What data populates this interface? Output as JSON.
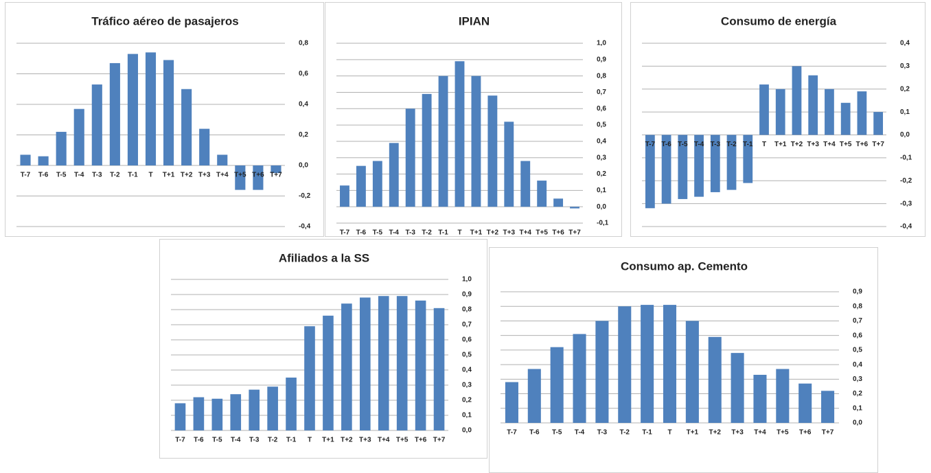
{
  "chart_data": [
    {
      "type": "bar",
      "title": "Tráfico aéreo de pasajeros",
      "color": "#4f81bd",
      "grid": true,
      "categories": [
        "T-7",
        "T-6",
        "T-5",
        "T-4",
        "T-3",
        "T-2",
        "T-1",
        "T",
        "T+1",
        "T+2",
        "T+3",
        "T+4",
        "T+5",
        "T+6",
        "T+7"
      ],
      "values": [
        0.07,
        0.06,
        0.22,
        0.37,
        0.53,
        0.67,
        0.73,
        0.74,
        0.69,
        0.5,
        0.24,
        0.07,
        -0.16,
        -0.16,
        -0.05
      ],
      "ylim": [
        -0.4,
        0.8
      ],
      "yticks": [
        {
          "value": -0.4,
          "label": "-0,4"
        },
        {
          "value": -0.2,
          "label": "-0,2"
        },
        {
          "value": 0,
          "label": "0,0"
        },
        {
          "value": 0.2,
          "label": "0,2"
        },
        {
          "value": 0.4,
          "label": "0,4"
        },
        {
          "value": 0.6,
          "label": "0,6"
        },
        {
          "value": 0.8,
          "label": "0,8"
        }
      ]
    },
    {
      "type": "bar",
      "title": "IPIAN",
      "color": "#4f81bd",
      "grid": true,
      "categories": [
        "T-7",
        "T-6",
        "T-5",
        "T-4",
        "T-3",
        "T-2",
        "T-1",
        "T",
        "T+1",
        "T+2",
        "T+3",
        "T+4",
        "T+5",
        "T+6",
        "T+7"
      ],
      "values": [
        0.13,
        0.25,
        0.28,
        0.39,
        0.6,
        0.69,
        0.8,
        0.89,
        0.8,
        0.68,
        0.52,
        0.28,
        0.16,
        0.05,
        -0.01
      ],
      "ylim": [
        -0.1,
        1.0
      ],
      "yticks": [
        {
          "value": -0.1,
          "label": "-0,1"
        },
        {
          "value": 0,
          "label": "0,0"
        },
        {
          "value": 0.1,
          "label": "0,1"
        },
        {
          "value": 0.2,
          "label": "0,2"
        },
        {
          "value": 0.3,
          "label": "0,3"
        },
        {
          "value": 0.4,
          "label": "0,4"
        },
        {
          "value": 0.5,
          "label": "0,5"
        },
        {
          "value": 0.6,
          "label": "0,6"
        },
        {
          "value": 0.7,
          "label": "0,7"
        },
        {
          "value": 0.8,
          "label": "0,8"
        },
        {
          "value": 0.9,
          "label": "0,9"
        },
        {
          "value": 1.0,
          "label": "1,0"
        }
      ]
    },
    {
      "type": "bar",
      "title": "Consumo de energía",
      "color": "#4f81bd",
      "grid": true,
      "categories": [
        "T-7",
        "T-6",
        "T-5",
        "T-4",
        "T-3",
        "T-2",
        "T-1",
        "T",
        "T+1",
        "T+2",
        "T+3",
        "T+4",
        "T+5",
        "T+6",
        "T+7"
      ],
      "values": [
        -0.32,
        -0.3,
        -0.28,
        -0.27,
        -0.25,
        -0.24,
        -0.21,
        0.22,
        0.2,
        0.3,
        0.26,
        0.2,
        0.14,
        0.19,
        0.1
      ],
      "ylim": [
        -0.4,
        0.4
      ],
      "yticks": [
        {
          "value": -0.4,
          "label": "-0,4"
        },
        {
          "value": -0.3,
          "label": "-0,3"
        },
        {
          "value": -0.2,
          "label": "-0,2"
        },
        {
          "value": -0.1,
          "label": "-0,1"
        },
        {
          "value": 0,
          "label": "0,0"
        },
        {
          "value": 0.1,
          "label": "0,1"
        },
        {
          "value": 0.2,
          "label": "0,2"
        },
        {
          "value": 0.3,
          "label": "0,3"
        },
        {
          "value": 0.4,
          "label": "0,4"
        }
      ]
    },
    {
      "type": "bar",
      "title": "Afiliados a la SS",
      "color": "#4f81bd",
      "grid": true,
      "categories": [
        "T-7",
        "T-6",
        "T-5",
        "T-4",
        "T-3",
        "T-2",
        "T-1",
        "T",
        "T+1",
        "T+2",
        "T+3",
        "T+4",
        "T+5",
        "T+6",
        "T+7"
      ],
      "values": [
        0.18,
        0.22,
        0.21,
        0.24,
        0.27,
        0.29,
        0.35,
        0.69,
        0.76,
        0.84,
        0.88,
        0.89,
        0.89,
        0.86,
        0.81
      ],
      "ylim": [
        0,
        1.0
      ],
      "yticks": [
        {
          "value": 0,
          "label": "0,0"
        },
        {
          "value": 0.1,
          "label": "0,1"
        },
        {
          "value": 0.2,
          "label": "0,2"
        },
        {
          "value": 0.3,
          "label": "0,3"
        },
        {
          "value": 0.4,
          "label": "0,4"
        },
        {
          "value": 0.5,
          "label": "0,5"
        },
        {
          "value": 0.6,
          "label": "0,6"
        },
        {
          "value": 0.7,
          "label": "0,7"
        },
        {
          "value": 0.8,
          "label": "0,8"
        },
        {
          "value": 0.9,
          "label": "0,9"
        },
        {
          "value": 1.0,
          "label": "1,0"
        }
      ]
    },
    {
      "type": "bar",
      "title": "Consumo ap. Cemento",
      "color": "#4f81bd",
      "grid": true,
      "categories": [
        "T-7",
        "T-6",
        "T-5",
        "T-4",
        "T-3",
        "T-2",
        "T-1",
        "T",
        "T+1",
        "T+2",
        "T+3",
        "T+4",
        "T+5",
        "T+6",
        "T+7"
      ],
      "values": [
        0.28,
        0.37,
        0.52,
        0.61,
        0.7,
        0.8,
        0.81,
        0.81,
        0.7,
        0.59,
        0.48,
        0.33,
        0.37,
        0.27,
        0.22
      ],
      "ylim": [
        0,
        0.9
      ],
      "yticks": [
        {
          "value": 0,
          "label": "0,0"
        },
        {
          "value": 0.1,
          "label": "0,1"
        },
        {
          "value": 0.2,
          "label": "0,2"
        },
        {
          "value": 0.3,
          "label": "0,3"
        },
        {
          "value": 0.4,
          "label": "0,4"
        },
        {
          "value": 0.5,
          "label": "0,5"
        },
        {
          "value": 0.6,
          "label": "0,6"
        },
        {
          "value": 0.7,
          "label": "0,7"
        },
        {
          "value": 0.8,
          "label": "0,8"
        },
        {
          "value": 0.9,
          "label": "0,9"
        }
      ]
    }
  ]
}
